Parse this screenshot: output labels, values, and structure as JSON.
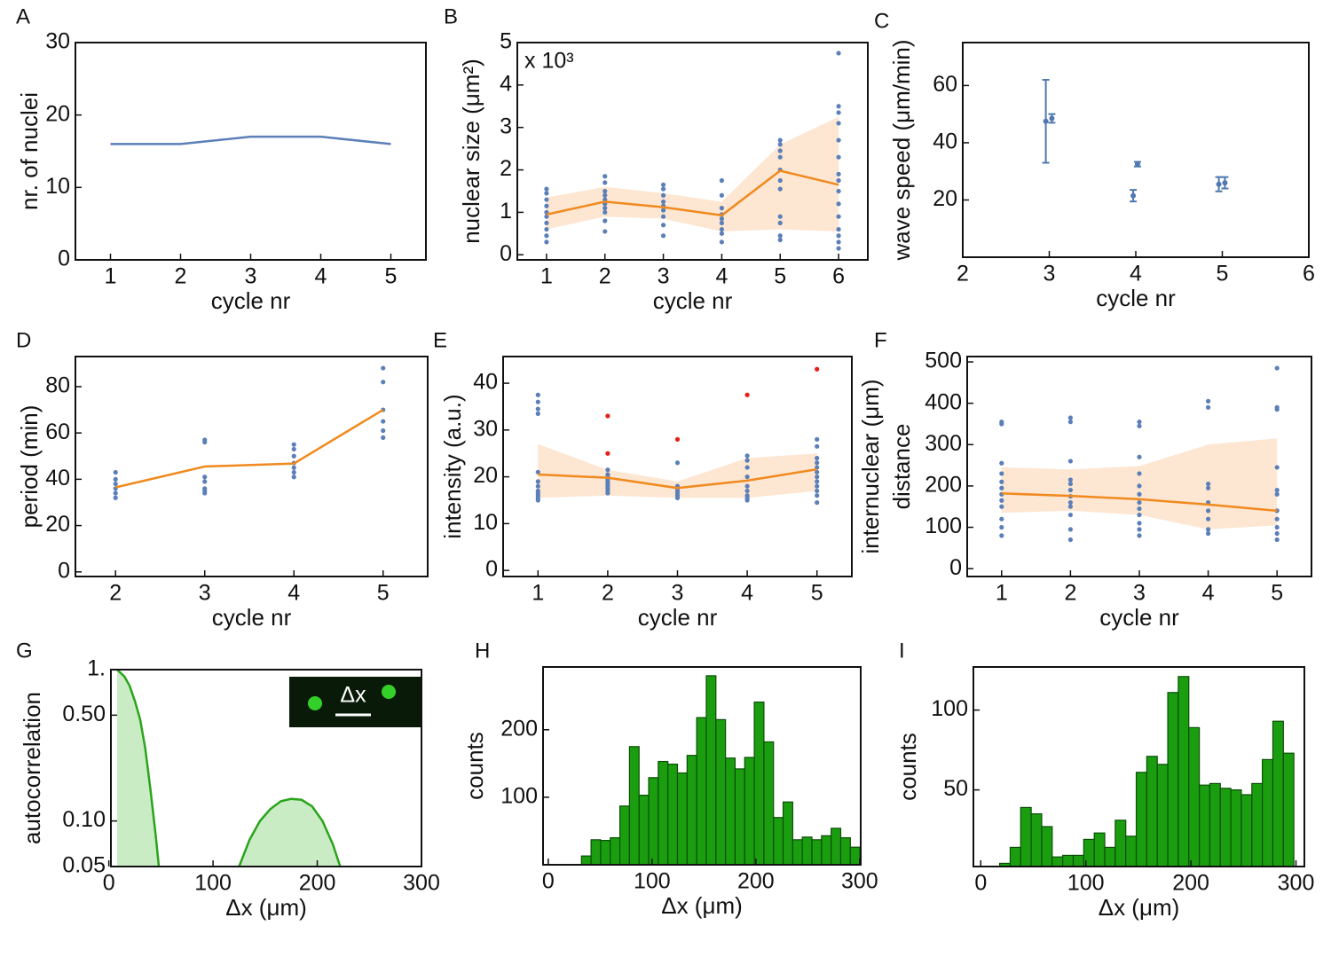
{
  "chart_data": [
    {
      "type": "line",
      "panel_label": "A",
      "xlabel": "cycle nr",
      "ylabel": "nr. of nuclei",
      "xlim": [
        0.5,
        5.5
      ],
      "ylim": [
        0,
        30
      ],
      "xticks": [
        1,
        2,
        3,
        4,
        5
      ],
      "yticks": [
        0,
        10,
        20,
        30
      ],
      "series": [
        {
          "type": "line",
          "color": "#5b7fb8",
          "x": [
            1,
            2,
            3,
            4,
            5
          ],
          "values": [
            16,
            16,
            17,
            17,
            16
          ]
        }
      ]
    },
    {
      "type": "line",
      "panel_label": "B",
      "xlabel": "cycle nr",
      "ylabel": "nuclear size (μm²)",
      "annotation": "x 10³",
      "xlim": [
        0.5,
        6.5
      ],
      "ylim": [
        -0.12,
        5
      ],
      "xticks": [
        1,
        2,
        3,
        4,
        5,
        6
      ],
      "yticks": [
        0,
        1,
        2,
        3,
        4,
        5
      ],
      "series": [
        {
          "type": "band",
          "color": "#fde6d2",
          "x": [
            1,
            2,
            3,
            4,
            5,
            6
          ],
          "lower": [
            0.6,
            0.9,
            0.85,
            0.55,
            0.6,
            0.55
          ],
          "upper": [
            1.35,
            1.6,
            1.45,
            1.25,
            2.6,
            3.25
          ]
        },
        {
          "type": "scatter",
          "color": "#5b7fb8",
          "x": [
            1,
            1,
            1,
            1,
            1,
            1,
            1,
            1,
            1,
            1,
            2,
            2,
            2,
            2,
            2,
            2,
            2,
            2,
            2,
            2,
            3,
            3,
            3,
            3,
            3,
            3,
            3,
            3,
            3,
            4,
            4,
            4,
            4,
            4,
            4,
            4,
            4,
            4,
            5,
            5,
            5,
            5,
            5,
            5,
            5,
            5,
            5,
            5,
            5,
            6,
            6,
            6,
            6,
            6,
            6,
            6,
            6,
            6,
            6,
            6,
            6,
            6,
            6,
            6
          ],
          "values": [
            1.55,
            1.45,
            1.3,
            1.15,
            1.0,
            0.9,
            0.75,
            0.6,
            0.45,
            0.3,
            1.85,
            1.7,
            1.5,
            1.4,
            1.3,
            1.2,
            1.1,
            1.0,
            0.8,
            0.55,
            1.65,
            1.55,
            1.4,
            1.25,
            1.15,
            1.05,
            0.9,
            0.7,
            0.45,
            1.75,
            1.4,
            1.1,
            0.95,
            0.85,
            0.75,
            0.6,
            0.5,
            0.3,
            2.7,
            2.6,
            2.45,
            2.3,
            2.0,
            1.75,
            1.55,
            0.9,
            0.75,
            0.45,
            0.35,
            4.75,
            3.5,
            3.35,
            3.1,
            2.7,
            2.3,
            1.9,
            1.75,
            1.5,
            1.2,
            0.9,
            0.6,
            0.45,
            0.3,
            0.15
          ]
        },
        {
          "type": "line",
          "color": "#f08a1e",
          "x": [
            1,
            2,
            3,
            4,
            5,
            6
          ],
          "values": [
            0.95,
            1.25,
            1.12,
            0.93,
            1.98,
            1.65
          ]
        }
      ]
    },
    {
      "type": "errorbar",
      "panel_label": "C",
      "xlabel": "cycle nr",
      "ylabel": "wave speed (μm/min)",
      "xlim": [
        2,
        6
      ],
      "ylim": [
        0,
        75
      ],
      "xticks": [
        2,
        3,
        4,
        5,
        6
      ],
      "yticks": [
        20,
        40,
        60
      ],
      "series": [
        {
          "type": "errorbar",
          "color": "#4f79b0",
          "x": [
            2.96,
            3.03,
            3.97,
            4.02,
            4.96,
            5.03
          ],
          "values": [
            47.5,
            48.5,
            21.5,
            32.5,
            25.5,
            26
          ],
          "errors": [
            14.5,
            1.5,
            2,
            0.8,
            2.5,
            2
          ]
        }
      ]
    },
    {
      "type": "line",
      "panel_label": "D",
      "xlabel": "cycle nr",
      "ylabel": "period (min)",
      "xlim": [
        1.55,
        5.5
      ],
      "ylim": [
        -2,
        93
      ],
      "xticks": [
        2,
        3,
        4,
        5
      ],
      "yticks": [
        0,
        20,
        40,
        60,
        80
      ],
      "series": [
        {
          "type": "scatter",
          "color": "#5b7fb8",
          "x": [
            2,
            2,
            2,
            2,
            2,
            2,
            3,
            3,
            3,
            3,
            3,
            3,
            3,
            4,
            4,
            4,
            4,
            4,
            4,
            4,
            5,
            5,
            5,
            5,
            5,
            5
          ],
          "values": [
            43,
            40,
            38,
            36,
            34,
            32,
            57,
            56,
            41,
            39,
            36,
            35,
            34,
            55,
            53,
            50,
            47,
            45,
            43,
            41,
            88,
            82,
            70,
            65,
            61,
            58
          ]
        },
        {
          "type": "line",
          "color": "#f08a1e",
          "x": [
            2,
            3,
            4,
            5
          ],
          "values": [
            36.5,
            45.5,
            46.8,
            70
          ]
        }
      ]
    },
    {
      "type": "line",
      "panel_label": "E",
      "xlabel": "cycle nr",
      "ylabel": "intensity (a.u.)",
      "xlim": [
        0.5,
        5.5
      ],
      "ylim": [
        -1.3,
        45.7
      ],
      "xticks": [
        1,
        2,
        3,
        4,
        5
      ],
      "yticks": [
        0,
        10,
        20,
        30,
        40
      ],
      "series": [
        {
          "type": "band",
          "color": "#fde6d2",
          "x": [
            1,
            2,
            3,
            4,
            5
          ],
          "lower": [
            15.5,
            16,
            15.5,
            15.5,
            17
          ],
          "upper": [
            27,
            21.5,
            19,
            24,
            25
          ]
        },
        {
          "type": "scatter",
          "color": "#5b7fb8",
          "x": [
            1,
            1,
            1,
            1,
            1,
            1,
            1,
            1,
            1,
            1,
            1,
            1,
            2,
            2,
            2,
            2,
            2,
            2,
            2,
            2,
            2,
            2,
            3,
            3,
            3,
            3,
            3,
            3,
            3,
            4,
            4,
            4,
            4,
            4,
            4,
            4,
            4,
            4,
            5,
            5,
            5,
            5,
            5,
            5,
            5,
            5,
            5,
            5,
            5,
            5
          ],
          "values": [
            37.5,
            36,
            34.5,
            33.5,
            21,
            19,
            18,
            17,
            16.5,
            16,
            15.5,
            15,
            21.5,
            20.5,
            20,
            19.5,
            19,
            18.5,
            18,
            17.5,
            17,
            16.5,
            23,
            18,
            17.5,
            17,
            16.5,
            16,
            15.5,
            24.5,
            23.5,
            22,
            20,
            18,
            17,
            16,
            15.5,
            15,
            28,
            26.5,
            24,
            23,
            22,
            21,
            20,
            19,
            18,
            17,
            16,
            14.5
          ]
        },
        {
          "type": "scatter",
          "color": "#e8201a",
          "x": [
            2,
            2,
            3,
            4,
            5
          ],
          "values": [
            33,
            25,
            28,
            37.5,
            43
          ]
        },
        {
          "type": "line",
          "color": "#f08a1e",
          "x": [
            1,
            2,
            3,
            4,
            5
          ],
          "values": [
            20.5,
            19.8,
            17.6,
            19.2,
            21.6
          ]
        }
      ]
    },
    {
      "type": "line",
      "panel_label": "F",
      "xlabel": "cycle nr",
      "ylabel": [
        "internuclear (μm)",
        "distance"
      ],
      "xlim": [
        0.5,
        5.5
      ],
      "ylim": [
        -19,
        513
      ],
      "xticks": [
        1,
        2,
        3,
        4,
        5
      ],
      "yticks": [
        0,
        100,
        200,
        300,
        400,
        500
      ],
      "series": [
        {
          "type": "band",
          "color": "#fde6d2",
          "x": [
            1,
            2,
            3,
            4,
            5
          ],
          "lower": [
            135,
            140,
            130,
            95,
            105
          ],
          "upper": [
            245,
            240,
            248,
            300,
            315
          ]
        },
        {
          "type": "scatter",
          "color": "#5b7fb8",
          "x": [
            1,
            1,
            1,
            1,
            1,
            1,
            1,
            1,
            1,
            1,
            1,
            1,
            2,
            2,
            2,
            2,
            2,
            2,
            2,
            2,
            2,
            2,
            2,
            2,
            3,
            3,
            3,
            3,
            3,
            3,
            3,
            3,
            3,
            3,
            3,
            3,
            4,
            4,
            4,
            4,
            4,
            4,
            4,
            4,
            4,
            5,
            5,
            5,
            5,
            5,
            5,
            5,
            5,
            5,
            5,
            5
          ],
          "values": [
            355,
            350,
            255,
            230,
            210,
            195,
            180,
            165,
            150,
            120,
            100,
            80,
            365,
            355,
            260,
            215,
            205,
            190,
            175,
            160,
            150,
            130,
            95,
            70,
            355,
            345,
            270,
            230,
            200,
            180,
            160,
            145,
            130,
            110,
            95,
            80,
            405,
            390,
            205,
            195,
            160,
            140,
            120,
            95,
            85,
            485,
            390,
            385,
            245,
            190,
            180,
            140,
            120,
            100,
            85,
            70
          ]
        },
        {
          "type": "line",
          "color": "#f08a1e",
          "x": [
            1,
            2,
            3,
            4,
            5
          ],
          "values": [
            182,
            176,
            168,
            155,
            140
          ]
        }
      ]
    },
    {
      "type": "area",
      "panel_label": "G",
      "xlabel": "Δx (μm)",
      "ylabel": "autocorrelation",
      "inset_label": "Δx",
      "ylog": true,
      "xlim": [
        2,
        300
      ],
      "ylim": [
        0.05,
        1
      ],
      "xticks": [
        0,
        100,
        200,
        300
      ],
      "yticks": [
        0.05,
        {
          "value": 0.1,
          "label": "0.10"
        },
        {
          "value": 0.5,
          "label": "0.50"
        },
        {
          "value": 1,
          "label": "1."
        }
      ],
      "series": [
        {
          "type": "area",
          "color": "#2aa41c",
          "fill": "#c9ecc4",
          "x": [
            8,
            15,
            20,
            25,
            30,
            35,
            40,
            45,
            48,
            null,
            125,
            135,
            145,
            155,
            165,
            175,
            185,
            195,
            205,
            215,
            222
          ],
          "values": [
            1,
            0.9,
            0.78,
            0.62,
            0.47,
            0.3,
            0.16,
            0.08,
            0.05,
            null,
            0.05,
            0.075,
            0.1,
            0.12,
            0.135,
            0.14,
            0.138,
            0.125,
            0.1,
            0.07,
            0.05
          ]
        }
      ]
    },
    {
      "type": "histogram",
      "panel_label": "H",
      "xlabel": "Δx (μm)",
      "ylabel": "counts",
      "xlim": [
        -5,
        301
      ],
      "ylim": [
        0,
        293
      ],
      "xticks": [
        0,
        100,
        200,
        300
      ],
      "yticks": [
        100,
        200
      ],
      "color": "#1a9e0f",
      "bins": [
        32,
        41.25,
        50.5,
        59.75,
        69,
        78.25,
        87.5,
        96.75,
        106,
        115.25,
        124.5,
        133.75,
        143,
        152.25,
        161.5,
        170.75,
        180,
        189.25,
        198.5,
        207.75,
        217,
        226.25,
        235.5,
        244.75,
        254,
        263.25,
        272.5,
        281.75,
        291,
        300.25
      ],
      "counts": [
        13,
        37,
        36,
        40,
        87,
        175,
        103,
        129,
        153,
        149,
        136,
        162,
        218,
        280,
        215,
        158,
        142,
        159,
        241,
        182,
        70,
        93,
        37,
        41,
        37,
        43,
        54,
        40,
        26
      ]
    },
    {
      "type": "histogram",
      "panel_label": "I",
      "xlabel": "Δx (μm)",
      "ylabel": "counts",
      "xlim": [
        -7,
        308
      ],
      "ylim": [
        2,
        127
      ],
      "xticks": [
        0,
        100,
        200,
        300
      ],
      "yticks": [
        50,
        100
      ],
      "color": "#1a9e0f",
      "bins": [
        18,
        28,
        38,
        48,
        58,
        68,
        78,
        88,
        98,
        108,
        118,
        128,
        138,
        148,
        158,
        168,
        178,
        188,
        198,
        208,
        218,
        228,
        238,
        248,
        258,
        268,
        278,
        288,
        298
      ],
      "counts": [
        4,
        14,
        39,
        35,
        27,
        8,
        9,
        9,
        19,
        23,
        14,
        31,
        21,
        61,
        71,
        66,
        111,
        121,
        89,
        53,
        54,
        51,
        50,
        47,
        54,
        69,
        93,
        73
      ]
    }
  ]
}
